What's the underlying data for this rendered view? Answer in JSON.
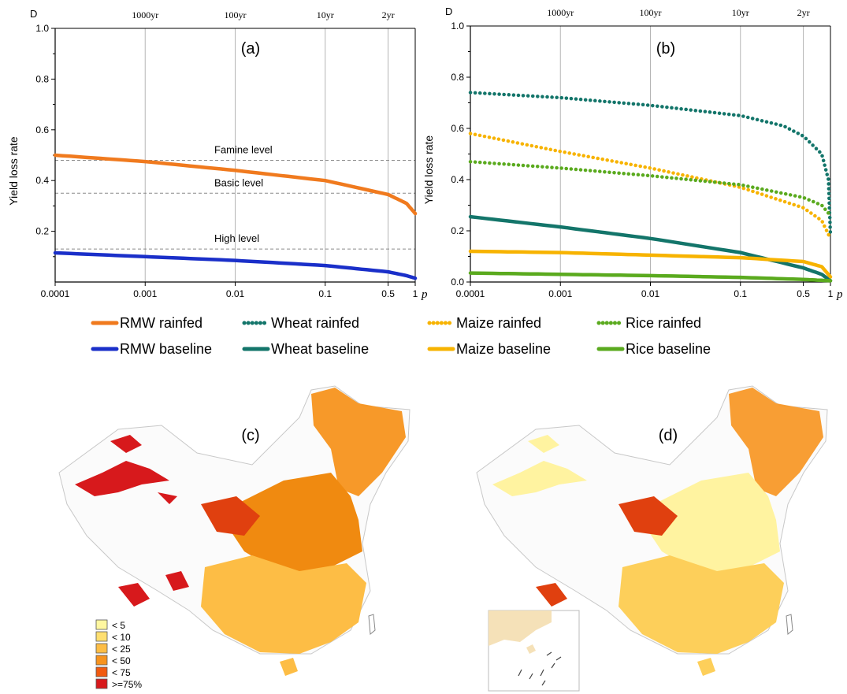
{
  "chart_data": [
    {
      "id": "a",
      "type": "line",
      "panel_label": "(a)",
      "corner_label": "D",
      "ylabel": "Yield loss rate",
      "xlabel": "p",
      "x_scale": "log",
      "xlim": [
        0.0001,
        1
      ],
      "ylim": [
        0,
        1.0
      ],
      "x_ticks": [
        0.0001,
        0.001,
        0.01,
        0.1,
        0.5,
        1
      ],
      "x_tick_labels": [
        "0.0001",
        "0.001",
        "0.01",
        "0.1",
        "0.5",
        "1"
      ],
      "y_ticks": [
        0.2,
        0.4,
        0.6,
        0.8,
        1.0
      ],
      "y_tick_labels": [
        "0.2",
        "0.4",
        "0.6",
        "0.8",
        "1.0"
      ],
      "return_periods": [
        {
          "label": "1000yr",
          "p": 0.001
        },
        {
          "label": "100yr",
          "p": 0.01
        },
        {
          "label": "10yr",
          "p": 0.1
        },
        {
          "label": "2yr",
          "p": 0.5
        }
      ],
      "reference_lines": [
        {
          "label": "Famine level",
          "y": 0.48
        },
        {
          "label": "Basic level",
          "y": 0.35
        },
        {
          "label": "High level",
          "y": 0.13
        }
      ],
      "series": [
        {
          "name": "RMW rainfed",
          "color": "#f07a1e",
          "style": "solid",
          "points": [
            [
              0.0001,
              0.5
            ],
            [
              0.001,
              0.475
            ],
            [
              0.01,
              0.44
            ],
            [
              0.1,
              0.4
            ],
            [
              0.5,
              0.345
            ],
            [
              0.8,
              0.31
            ],
            [
              1,
              0.27
            ]
          ]
        },
        {
          "name": "RMW baseline",
          "color": "#1a2fc9",
          "style": "solid",
          "points": [
            [
              0.0001,
              0.115
            ],
            [
              0.001,
              0.1
            ],
            [
              0.01,
              0.085
            ],
            [
              0.1,
              0.065
            ],
            [
              0.5,
              0.04
            ],
            [
              0.8,
              0.025
            ],
            [
              1,
              0.015
            ]
          ]
        }
      ]
    },
    {
      "id": "b",
      "type": "line",
      "panel_label": "(b)",
      "corner_label": "D",
      "ylabel": "Yield loss rate",
      "xlabel": "p",
      "x_scale": "log",
      "xlim": [
        0.0001,
        1
      ],
      "ylim": [
        0,
        1.0
      ],
      "x_ticks": [
        0.0001,
        0.001,
        0.01,
        0.1,
        0.5,
        1
      ],
      "x_tick_labels": [
        "0.0001",
        "0.001",
        "0.01",
        "0.1",
        "0.5",
        "1"
      ],
      "y_ticks": [
        0.0,
        0.2,
        0.4,
        0.6,
        0.8,
        1.0
      ],
      "y_tick_labels": [
        "0.0",
        "0.2",
        "0.4",
        "0.6",
        "0.8",
        "1.0"
      ],
      "return_periods": [
        {
          "label": "1000yr",
          "p": 0.001
        },
        {
          "label": "100yr",
          "p": 0.01
        },
        {
          "label": "10yr",
          "p": 0.1
        },
        {
          "label": "2yr",
          "p": 0.5
        }
      ],
      "series": [
        {
          "name": "Wheat rainfed",
          "color": "#13756a",
          "style": "dotted",
          "points": [
            [
              0.0001,
              0.74
            ],
            [
              0.001,
              0.72
            ],
            [
              0.01,
              0.69
            ],
            [
              0.1,
              0.65
            ],
            [
              0.3,
              0.61
            ],
            [
              0.5,
              0.57
            ],
            [
              0.8,
              0.5
            ],
            [
              0.95,
              0.4
            ],
            [
              1,
              0.18
            ]
          ]
        },
        {
          "name": "Wheat baseline",
          "color": "#13756a",
          "style": "solid",
          "points": [
            [
              0.0001,
              0.255
            ],
            [
              0.001,
              0.215
            ],
            [
              0.01,
              0.17
            ],
            [
              0.1,
              0.115
            ],
            [
              0.5,
              0.055
            ],
            [
              0.8,
              0.03
            ],
            [
              1,
              0.005
            ]
          ]
        },
        {
          "name": "Maize rainfed",
          "color": "#f7b300",
          "style": "dotted",
          "points": [
            [
              0.0001,
              0.58
            ],
            [
              0.001,
              0.51
            ],
            [
              0.01,
              0.445
            ],
            [
              0.1,
              0.37
            ],
            [
              0.5,
              0.29
            ],
            [
              0.8,
              0.24
            ],
            [
              1,
              0.17
            ]
          ]
        },
        {
          "name": "Maize baseline",
          "color": "#f7b300",
          "style": "solid",
          "points": [
            [
              0.0001,
              0.12
            ],
            [
              0.001,
              0.115
            ],
            [
              0.01,
              0.105
            ],
            [
              0.1,
              0.095
            ],
            [
              0.5,
              0.08
            ],
            [
              0.8,
              0.06
            ],
            [
              1,
              0.02
            ]
          ]
        },
        {
          "name": "Rice rainfed",
          "color": "#5aaa1e",
          "style": "dotted",
          "points": [
            [
              0.0001,
              0.47
            ],
            [
              0.001,
              0.445
            ],
            [
              0.01,
              0.415
            ],
            [
              0.1,
              0.38
            ],
            [
              0.5,
              0.33
            ],
            [
              0.8,
              0.3
            ],
            [
              1,
              0.26
            ]
          ]
        },
        {
          "name": "Rice baseline",
          "color": "#5aaa1e",
          "style": "solid",
          "points": [
            [
              0.0001,
              0.035
            ],
            [
              0.001,
              0.03
            ],
            [
              0.01,
              0.025
            ],
            [
              0.1,
              0.018
            ],
            [
              0.5,
              0.01
            ],
            [
              1,
              0.005
            ]
          ]
        }
      ]
    }
  ],
  "legend": {
    "items": [
      {
        "name": "RMW rainfed",
        "color": "#f07a1e",
        "style": "solid"
      },
      {
        "name": "RMW baseline",
        "color": "#1a2fc9",
        "style": "solid"
      },
      {
        "name": "Wheat rainfed",
        "color": "#13756a",
        "style": "dotted"
      },
      {
        "name": "Wheat baseline",
        "color": "#13756a",
        "style": "solid"
      },
      {
        "name": "Maize rainfed",
        "color": "#f7b300",
        "style": "dotted"
      },
      {
        "name": "Maize baseline",
        "color": "#f7b300",
        "style": "solid"
      },
      {
        "name": "Rice rainfed",
        "color": "#5aaa1e",
        "style": "dotted"
      },
      {
        "name": "Rice baseline",
        "color": "#5aaa1e",
        "style": "solid"
      }
    ]
  },
  "maps": [
    {
      "id": "c",
      "panel_label": "(c)",
      "dominant_class": "< 50"
    },
    {
      "id": "d",
      "panel_label": "(d)",
      "dominant_class": "< 10"
    }
  ],
  "map_legend": {
    "classes": [
      {
        "label": "< 5",
        "color": "#fff7a0"
      },
      {
        "label": "< 10",
        "color": "#ffdf70"
      },
      {
        "label": "< 25",
        "color": "#fdbd45"
      },
      {
        "label": "< 50",
        "color": "#f7931e"
      },
      {
        "label": "< 75",
        "color": "#f15a0f"
      },
      {
        "label": ">=75%",
        "color": "#d7191c"
      }
    ]
  }
}
